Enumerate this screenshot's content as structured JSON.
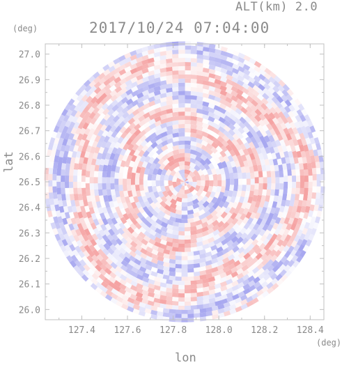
{
  "header": {
    "altitude_text": "ALT(km) 2.0",
    "datetime_text": "2017/10/24 07:04:00"
  },
  "chart_data": {
    "type": "heatmap",
    "title": "2017/10/24 07:04:00",
    "subtitle": "ALT(km) 2.0",
    "xlabel": "lon",
    "ylabel": "lat",
    "x_unit": "(deg)",
    "y_unit": "(deg)",
    "xlim": [
      127.24,
      128.46
    ],
    "ylim": [
      25.96,
      27.04
    ],
    "x_ticks": [
      "127.4",
      "127.6",
      "127.8",
      "128.0",
      "128.2",
      "128.4"
    ],
    "y_ticks": [
      "26.0",
      "26.1",
      "26.2",
      "26.3",
      "26.4",
      "26.5",
      "26.6",
      "26.7",
      "26.8",
      "26.9",
      "27.0"
    ],
    "center": {
      "lon": 127.85,
      "lat": 26.5
    },
    "radius_lat_deg": 0.55,
    "colormap": [
      "#a8a8f0",
      "#ffffff",
      "#f5a3a3"
    ],
    "grid": false,
    "frame_color": "#c0c0c0",
    "text_color": "#8a8a8a"
  }
}
